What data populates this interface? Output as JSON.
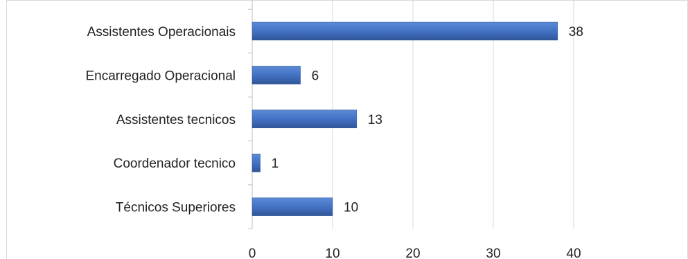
{
  "chart_data": {
    "type": "bar",
    "orientation": "horizontal",
    "categories": [
      "Assistentes Operacionais",
      "Encarregado Operacional",
      "Assistentes tecnicos",
      "Coordenador tecnico",
      "Técnicos Superiores"
    ],
    "values": [
      38,
      6,
      13,
      1,
      10
    ],
    "data_labels": [
      "38",
      "6",
      "13",
      "1",
      "10"
    ],
    "xlim": [
      0,
      40
    ],
    "x_ticks": [
      "0",
      "10",
      "20",
      "30",
      "40"
    ],
    "grid": true,
    "bar_color": "#4472c4",
    "bar_color_dark": "#2f5597"
  }
}
